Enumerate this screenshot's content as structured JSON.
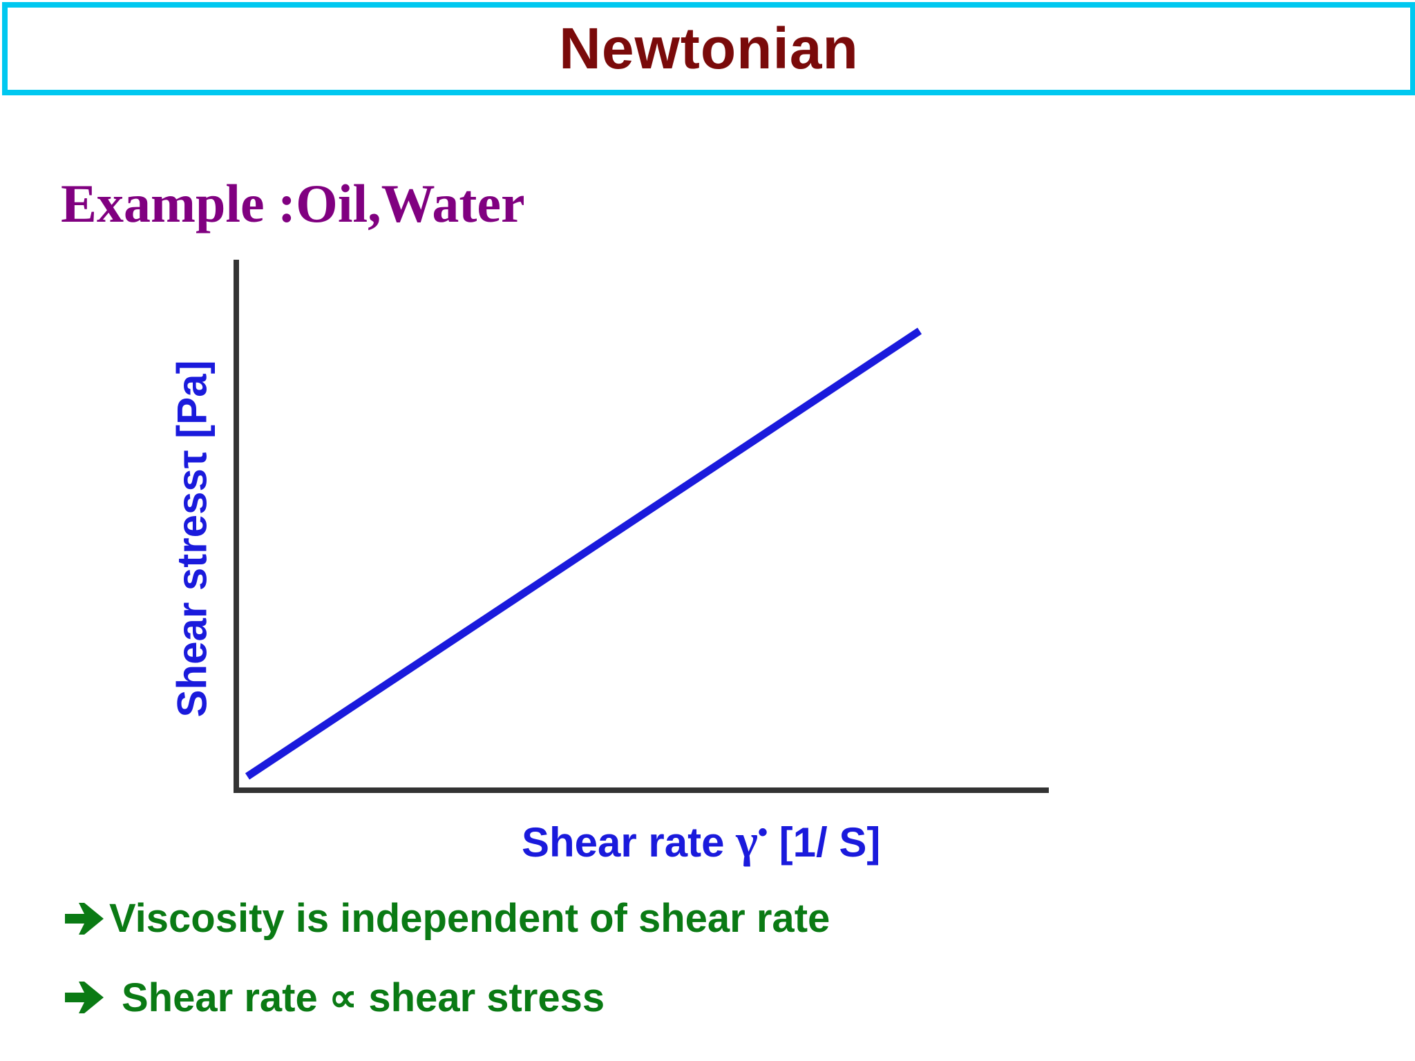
{
  "header": {
    "title": "Newtonian"
  },
  "subtitle": "Example :Oil,Water",
  "diagram": {
    "y_axis_label": "Shear stressτ [Pa]",
    "x_axis_label_prefix": "Shear rate ",
    "x_axis_symbol": "γ",
    "x_axis_symbol_dot": "•",
    "x_axis_label_suffix": " [1/ S]",
    "line_color": "#1a1adc",
    "axis_color": "#333333"
  },
  "bullets": [
    {
      "icon": "arrow-right-icon",
      "text": "Viscosity is independent of shear rate"
    },
    {
      "icon": "arrow-right-icon",
      "text": "Shear rate ∝ shear stress"
    }
  ],
  "colors": {
    "title_border": "#00c8f0",
    "title_text": "#7a0a0a",
    "subtitle_text": "#800080",
    "axis_label_text": "#1a1adc",
    "bullet_text": "#0a7a14"
  }
}
